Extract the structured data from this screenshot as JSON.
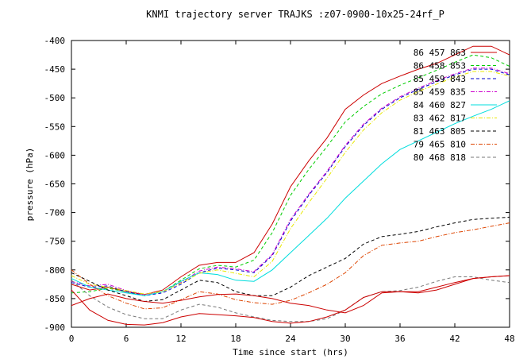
{
  "chart_data": {
    "type": "line",
    "title": "KNMI trajectory server TRAJKS :z07-0900-10x25-24rf_P",
    "xlabel": "Time since start (hrs)",
    "ylabel": "pressure (hPa)",
    "xlim": [
      0,
      48
    ],
    "ylim": [
      -900,
      -400
    ],
    "xticks": [
      0,
      6,
      12,
      18,
      24,
      30,
      36,
      42,
      48
    ],
    "yticks": [
      -900,
      -850,
      -800,
      -750,
      -700,
      -650,
      -600,
      -550,
      -500,
      -450,
      -400
    ],
    "x_tick_labels": [
      "0",
      "6",
      "12",
      "18",
      "24",
      "30",
      "36",
      "42",
      "48"
    ],
    "y_tick_labels": [
      "-900",
      "-850",
      "-800",
      "-750",
      "-700",
      "-650",
      "-600",
      "-550",
      "-500",
      "-450",
      "-400"
    ],
    "grid": false,
    "legend_position": "top-right",
    "series": [
      {
        "name": "86 457 863",
        "color": "#cc0000",
        "dash": "solid",
        "x": [
          0,
          2,
          4,
          6,
          8,
          10,
          12,
          14,
          16,
          18,
          20,
          22,
          24,
          26,
          28,
          30,
          32,
          34,
          36,
          38,
          40,
          42,
          44,
          46,
          48
        ],
        "y": [
          -825,
          -835,
          -830,
          -838,
          -843,
          -835,
          -812,
          -792,
          -787,
          -787,
          -770,
          -720,
          -655,
          -610,
          -570,
          -520,
          -495,
          -475,
          -462,
          -450,
          -440,
          -425,
          -410,
          -410,
          -425
        ]
      },
      {
        "name": "86 458 853",
        "color": "#00cc00",
        "dash": "dash",
        "x": [
          0,
          2,
          4,
          6,
          8,
          10,
          12,
          14,
          16,
          18,
          20,
          22,
          24,
          26,
          28,
          30,
          32,
          34,
          36,
          38,
          40,
          42,
          44,
          46,
          48
        ],
        "y": [
          -840,
          -838,
          -832,
          -838,
          -845,
          -838,
          -818,
          -798,
          -792,
          -795,
          -783,
          -735,
          -670,
          -625,
          -585,
          -542,
          -515,
          -493,
          -478,
          -465,
          -452,
          -438,
          -425,
          -430,
          -445
        ]
      },
      {
        "name": "85 459 843",
        "color": "#0000cc",
        "dash": "dash",
        "x": [
          0,
          2,
          4,
          6,
          8,
          10,
          12,
          14,
          16,
          18,
          20,
          22,
          24,
          26,
          28,
          30,
          32,
          34,
          36,
          38,
          40,
          42,
          44,
          46,
          48
        ],
        "y": [
          -822,
          -830,
          -828,
          -838,
          -845,
          -840,
          -825,
          -805,
          -797,
          -800,
          -805,
          -775,
          -715,
          -670,
          -630,
          -585,
          -548,
          -520,
          -500,
          -485,
          -472,
          -460,
          -450,
          -450,
          -460
        ]
      },
      {
        "name": "85 459 835",
        "color": "#cc00cc",
        "dash": "dashdot",
        "x": [
          0,
          2,
          4,
          6,
          8,
          10,
          12,
          14,
          16,
          18,
          20,
          22,
          24,
          26,
          28,
          30,
          32,
          34,
          36,
          38,
          40,
          42,
          44,
          46,
          48
        ],
        "y": [
          -820,
          -828,
          -825,
          -836,
          -843,
          -838,
          -822,
          -802,
          -795,
          -798,
          -803,
          -773,
          -712,
          -668,
          -628,
          -583,
          -546,
          -518,
          -498,
          -483,
          -470,
          -458,
          -448,
          -448,
          -458
        ]
      },
      {
        "name": "84 460 827",
        "color": "#00dddd",
        "dash": "solid",
        "x": [
          0,
          2,
          4,
          6,
          8,
          10,
          12,
          14,
          16,
          18,
          20,
          22,
          24,
          26,
          28,
          30,
          32,
          34,
          36,
          38,
          40,
          42,
          44,
          46,
          48
        ],
        "y": [
          -815,
          -830,
          -835,
          -840,
          -845,
          -838,
          -820,
          -805,
          -808,
          -818,
          -820,
          -800,
          -770,
          -740,
          -710,
          -675,
          -645,
          -615,
          -590,
          -575,
          -560,
          -545,
          -532,
          -520,
          -505
        ]
      },
      {
        "name": "83 462 817",
        "color": "#e8e800",
        "dash": "dashdot",
        "x": [
          0,
          2,
          4,
          6,
          8,
          10,
          12,
          14,
          16,
          18,
          20,
          22,
          24,
          26,
          28,
          30,
          32,
          34,
          36,
          38,
          40,
          42,
          44,
          46,
          48
        ],
        "y": [
          -810,
          -825,
          -830,
          -836,
          -842,
          -838,
          -823,
          -806,
          -800,
          -806,
          -812,
          -785,
          -728,
          -683,
          -640,
          -595,
          -556,
          -526,
          -504,
          -489,
          -476,
          -464,
          -454,
          -454,
          -462
        ]
      },
      {
        "name": "81 463 805",
        "color": "#000000",
        "dash": "dash",
        "x": [
          0,
          2,
          4,
          6,
          8,
          10,
          12,
          14,
          16,
          18,
          20,
          22,
          24,
          26,
          28,
          30,
          32,
          34,
          36,
          38,
          40,
          42,
          44,
          46,
          48
        ],
        "y": [
          -805,
          -820,
          -835,
          -845,
          -855,
          -852,
          -835,
          -818,
          -822,
          -838,
          -845,
          -845,
          -830,
          -810,
          -795,
          -780,
          -755,
          -742,
          -738,
          -733,
          -725,
          -718,
          -712,
          -710,
          -708
        ]
      },
      {
        "name": "79 465 810",
        "color": "#dd4400",
        "dash": "dashdot",
        "x": [
          0,
          2,
          4,
          6,
          8,
          10,
          12,
          14,
          16,
          18,
          20,
          22,
          24,
          26,
          28,
          30,
          32,
          34,
          36,
          38,
          40,
          42,
          44,
          46,
          48
        ],
        "y": [
          -800,
          -825,
          -845,
          -858,
          -868,
          -866,
          -852,
          -838,
          -842,
          -852,
          -857,
          -860,
          -853,
          -840,
          -825,
          -805,
          -775,
          -757,
          -753,
          -750,
          -742,
          -735,
          -730,
          -724,
          -718
        ]
      },
      {
        "name": "80 468 818",
        "color": "#777777",
        "dash": "dash",
        "x": [
          0,
          2,
          4,
          6,
          8,
          10,
          12,
          14,
          16,
          18,
          20,
          22,
          24,
          26,
          28,
          30,
          32,
          34,
          36,
          38,
          40,
          42,
          44,
          46,
          48
        ],
        "y": [
          -818,
          -845,
          -865,
          -878,
          -885,
          -885,
          -870,
          -860,
          -865,
          -875,
          -882,
          -888,
          -890,
          -890,
          -885,
          -870,
          -848,
          -838,
          -836,
          -830,
          -820,
          -812,
          -812,
          -818,
          -822
        ]
      },
      {
        "name": "",
        "color": "#cc0000",
        "dash": "solid",
        "x": [
          0,
          2,
          4,
          6,
          8,
          10,
          12,
          14,
          16,
          18,
          20,
          22,
          24,
          26,
          28,
          30,
          32,
          34,
          36,
          38,
          40,
          42,
          44,
          46,
          48
        ],
        "y": [
          -862,
          -850,
          -842,
          -850,
          -855,
          -858,
          -853,
          -847,
          -843,
          -842,
          -845,
          -850,
          -858,
          -862,
          -870,
          -875,
          -862,
          -840,
          -838,
          -840,
          -835,
          -825,
          -815,
          -812,
          -810
        ]
      },
      {
        "name": "",
        "color": "#cc0000",
        "dash": "solid",
        "x": [
          0,
          2,
          4,
          6,
          8,
          10,
          12,
          14,
          16,
          18,
          20,
          22,
          24,
          26,
          28,
          30,
          32,
          34,
          36,
          38,
          40,
          42,
          44,
          46,
          48
        ],
        "y": [
          -835,
          -870,
          -888,
          -895,
          -896,
          -892,
          -882,
          -876,
          -878,
          -880,
          -883,
          -890,
          -893,
          -890,
          -882,
          -870,
          -848,
          -838,
          -838,
          -838,
          -830,
          -822,
          -815,
          -812,
          -810
        ]
      }
    ]
  }
}
